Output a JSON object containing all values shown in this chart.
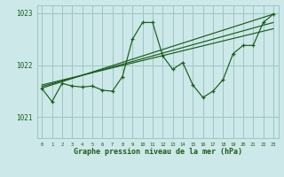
{
  "xlabel": "Graphe pression niveau de la mer (hPa)",
  "bg_color": "#cce8e8",
  "grid_color": "#9dc4c4",
  "line_color": "#1a5c1a",
  "ylim": [
    1020.6,
    1023.15
  ],
  "xlim": [
    -0.5,
    23.5
  ],
  "yticks": [
    1021,
    1022,
    1023
  ],
  "xticks": [
    0,
    1,
    2,
    3,
    4,
    5,
    6,
    7,
    8,
    9,
    10,
    11,
    12,
    13,
    14,
    15,
    16,
    17,
    18,
    19,
    20,
    21,
    22,
    23
  ],
  "hours": [
    0,
    1,
    2,
    3,
    4,
    5,
    6,
    7,
    8,
    9,
    10,
    11,
    12,
    13,
    14,
    15,
    16,
    17,
    18,
    19,
    20,
    21,
    22,
    23
  ],
  "pressure": [
    1021.55,
    1021.3,
    1021.65,
    1021.6,
    1021.58,
    1021.6,
    1021.52,
    1021.5,
    1021.78,
    1022.5,
    1022.82,
    1022.82,
    1022.18,
    1021.92,
    1022.05,
    1021.62,
    1021.38,
    1021.5,
    1021.72,
    1022.22,
    1022.38,
    1022.38,
    1022.82,
    1022.98
  ],
  "trend1_x": [
    0,
    23
  ],
  "trend1_y": [
    1021.56,
    1022.98
  ],
  "trend2_x": [
    0,
    23
  ],
  "trend2_y": [
    1021.59,
    1022.82
  ],
  "trend3_x": [
    0,
    23
  ],
  "trend3_y": [
    1021.62,
    1022.7
  ]
}
